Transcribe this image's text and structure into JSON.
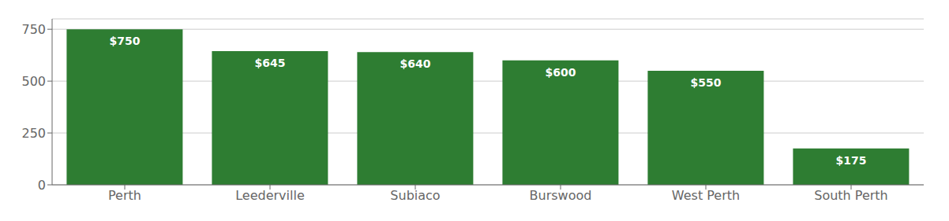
{
  "chart_data": {
    "type": "bar",
    "categories": [
      "Perth",
      "Leederville",
      "Subiaco",
      "Burswood",
      "West Perth",
      "South Perth"
    ],
    "values": [
      750,
      645,
      640,
      600,
      550,
      175
    ],
    "value_labels": [
      "$750",
      "$645",
      "$640",
      "$600",
      "$550",
      "$175"
    ],
    "data_labels": true,
    "color": "#2e7d32",
    "ylim": [
      0,
      800
    ],
    "yticks": [
      0,
      250,
      500,
      750
    ],
    "grid": true
  }
}
